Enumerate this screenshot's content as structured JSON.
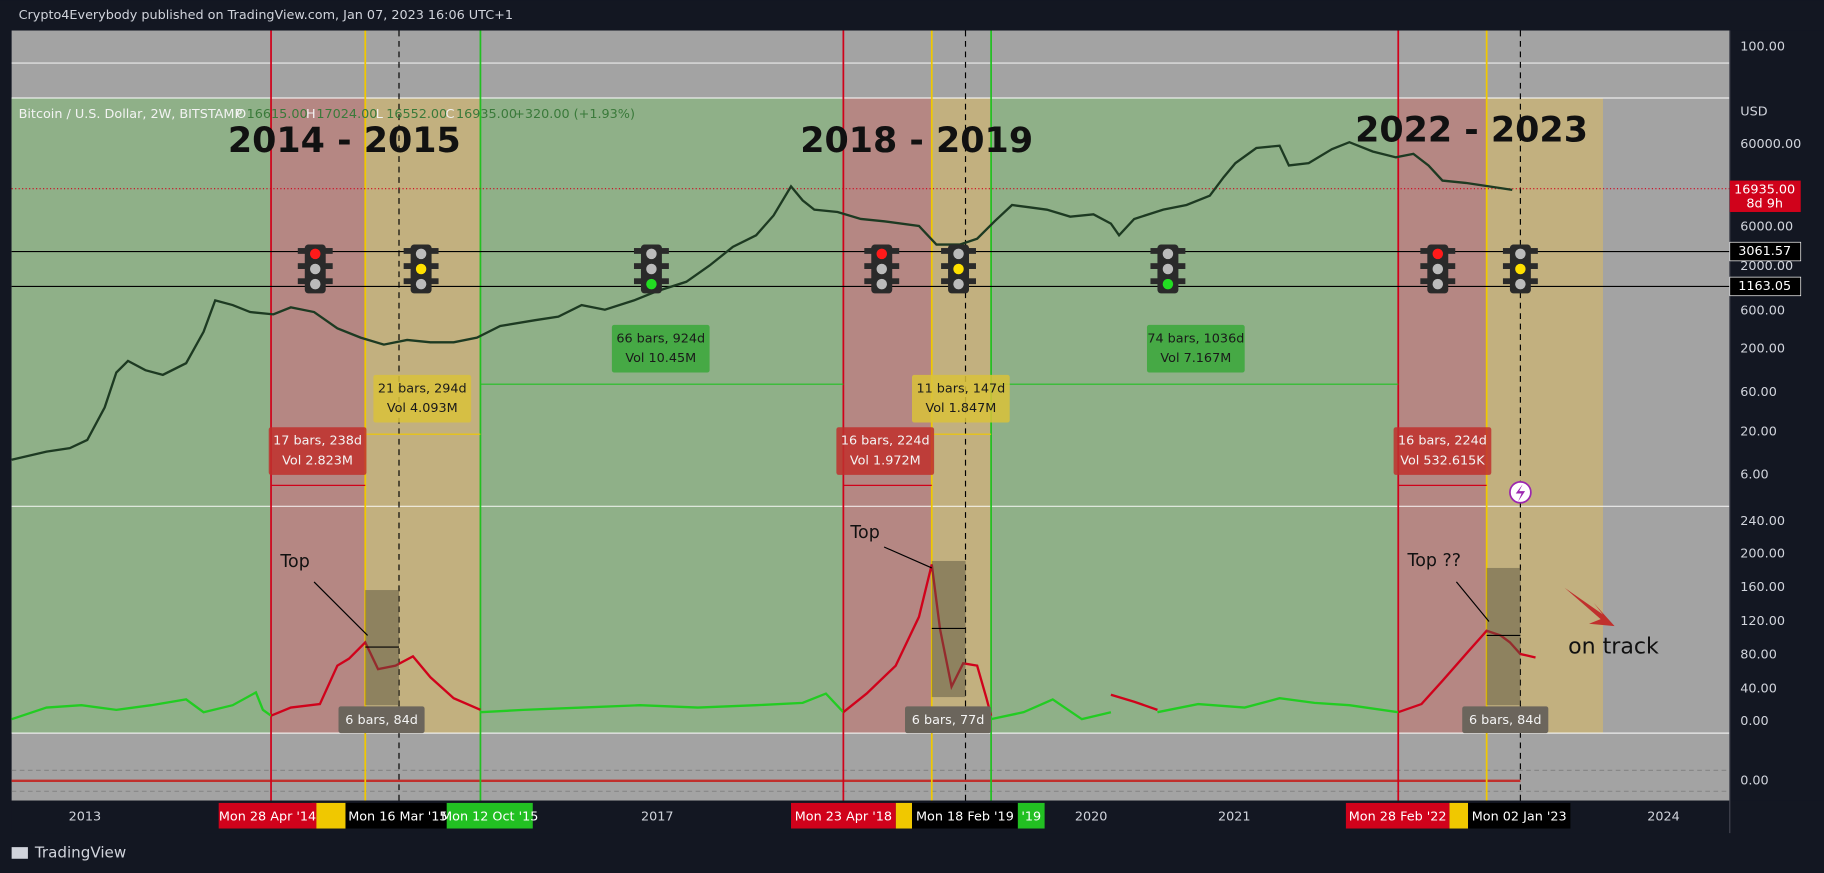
{
  "header": {
    "published": "Crypto4Everybody published on TradingView.com, Jan 07, 2023 16:06 UTC+1"
  },
  "legend": {
    "symbol": "Bitcoin / U.S. Dollar, 2W, BITSTAMP",
    "ohlc": [
      {
        "key": "O",
        "value": "16615.00"
      },
      {
        "key": "H",
        "value": "17024.00"
      },
      {
        "key": "L",
        "value": "16552.00"
      },
      {
        "key": "C",
        "value": "16935.00"
      }
    ],
    "change": "+320.00 (+1.93%)"
  },
  "periods": [
    "2014 - 2015",
    "2018 - 2019",
    "2022 - 2023"
  ],
  "range_boxes": [
    {
      "bars": "17 bars, 238d",
      "vol": "Vol 2.823M",
      "color": "#c0302d"
    },
    {
      "bars": "21 bars, 294d",
      "vol": "Vol 4.093M",
      "color": "#d9c23a"
    },
    {
      "bars": "66 bars, 924d",
      "vol": "Vol 10.45M",
      "color": "#3aa83a"
    },
    {
      "bars": "16 bars, 224d",
      "vol": "Vol 1.972M",
      "color": "#c0302d"
    },
    {
      "bars": "11 bars, 147d",
      "vol": "Vol 1.847M",
      "color": "#d9c23a"
    },
    {
      "bars": "74 bars, 1036d",
      "vol": "Vol 7.167M",
      "color": "#3aa83a"
    },
    {
      "bars": "16 bars, 224d",
      "vol": "Vol 532.615K",
      "color": "#c0302d"
    }
  ],
  "small_boxes": [
    "6 bars, 84d",
    "6 bars, 77d",
    "6 bars, 84d"
  ],
  "annotations": [
    "Top",
    "Top",
    "Top ??",
    "on track"
  ],
  "price_axis": {
    "top_pane": "100.00",
    "unit": "USD",
    "labels": [
      "60000.00",
      "6000.00",
      "2000.00",
      "600.00",
      "200.00",
      "60.00",
      "20.00",
      "6.00"
    ],
    "lower_labels": [
      "240.00",
      "200.00",
      "160.00",
      "120.00",
      "80.00",
      "40.00",
      "0.00"
    ],
    "bottom_pane": "0.00"
  },
  "price_tags": [
    {
      "label": "16935.00",
      "sub": "8d 9h",
      "color": "#d0021b"
    },
    {
      "label": "3061.57",
      "color": "#000000"
    },
    {
      "label": "1163.05",
      "color": "#000000"
    }
  ],
  "time_axis": {
    "years": [
      "2013",
      "2017",
      "2020",
      "2021",
      "2024"
    ],
    "dates": [
      {
        "label": "Mon 28 Apr '14",
        "color": "#d0021b"
      },
      {
        "label": "Mon 16 Mar '15",
        "color": "#000000"
      },
      {
        "label": "Mon 12 Oct '15",
        "color": "#22c022"
      },
      {
        "label": "Mon 23 Apr '18",
        "color": "#d0021b"
      },
      {
        "label": "Mon 18 Feb '19",
        "color": "#000000"
      },
      {
        "label": "'19",
        "color": "#22c022"
      },
      {
        "label": "Mon 28 Feb '22",
        "color": "#d0021b"
      },
      {
        "label": "Mon 02 Jan '23",
        "color": "#000000"
      }
    ]
  },
  "footer": {
    "brand": "TradingView"
  }
}
